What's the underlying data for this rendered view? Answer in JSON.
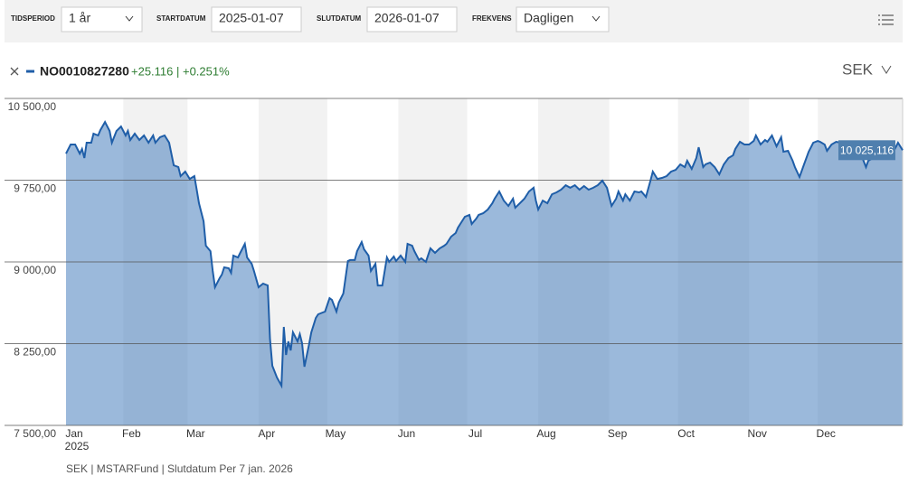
{
  "toolbar": {
    "period_label": "TIDSPERIOD",
    "period_value": "1 år",
    "start_label": "STARTDATUM",
    "start_value": "2025-01-07",
    "end_label": "SLUTDATUM",
    "end_value": "2026-01-07",
    "freq_label": "FREKVENS",
    "freq_value": "Dagligen"
  },
  "legend": {
    "change": "+25.116 | +0.251%",
    "currency": "SEK"
  },
  "footer": "SEK | MSTARFund | Slutdatum Per 7 jan. 2026",
  "chart_data": {
    "type": "area",
    "grid": true,
    "band_shading": true,
    "x_year_label": "2025",
    "xlim": [
      0,
      365
    ],
    "xticks": [
      {
        "value": 0,
        "label": "Jan"
      },
      {
        "value": 25,
        "label": "Feb"
      },
      {
        "value": 53,
        "label": "Mar"
      },
      {
        "value": 84,
        "label": "Apr"
      },
      {
        "value": 114,
        "label": "May"
      },
      {
        "value": 145,
        "label": "Jun"
      },
      {
        "value": 175,
        "label": "Jul"
      },
      {
        "value": 206,
        "label": "Aug"
      },
      {
        "value": 237,
        "label": "Sep"
      },
      {
        "value": 267,
        "label": "Oct"
      },
      {
        "value": 298,
        "label": "Nov"
      },
      {
        "value": 328,
        "label": "Dec"
      }
    ],
    "ylim": [
      7500,
      10500
    ],
    "yticks": [
      {
        "value": 7500,
        "label": "7 500,00"
      },
      {
        "value": 8250,
        "label": "8 250,00"
      },
      {
        "value": 9000,
        "label": "9 000,00"
      },
      {
        "value": 9750,
        "label": "9 750,00"
      },
      {
        "value": 10500,
        "label": "10 500,00"
      }
    ],
    "end_label": {
      "value": 10025.116,
      "label": "10 025,116"
    },
    "x": [
      0,
      2,
      4,
      6,
      7,
      8,
      9,
      11,
      12,
      14,
      15,
      17,
      19,
      20,
      22,
      24,
      26,
      27,
      28,
      30,
      32,
      34,
      36,
      38,
      39,
      41,
      43,
      45,
      47,
      49,
      50,
      52,
      54,
      56,
      57,
      58,
      60,
      61,
      63,
      64,
      65,
      67,
      68,
      69,
      71,
      72,
      73,
      75,
      76,
      78,
      79,
      81,
      82,
      84,
      86,
      88,
      89,
      90,
      92,
      94,
      95,
      96,
      97,
      98,
      99,
      101,
      102,
      103,
      104,
      106,
      107,
      109,
      110,
      112,
      113,
      115,
      116,
      118,
      119,
      121,
      123,
      124,
      126,
      127,
      129,
      130,
      132,
      133,
      135,
      136,
      138,
      140,
      141,
      143,
      144,
      146,
      148,
      149,
      151,
      152,
      154,
      155,
      157,
      159,
      161,
      163,
      165,
      166,
      168,
      170,
      171,
      172,
      174,
      176,
      177,
      179,
      180,
      182,
      184,
      186,
      187,
      189,
      191,
      193,
      195,
      196,
      198,
      200,
      202,
      204,
      205,
      206,
      208,
      210,
      212,
      214,
      216,
      218,
      220,
      222,
      224,
      226,
      228,
      230,
      232,
      234,
      236,
      238,
      240,
      241,
      243,
      244,
      246,
      248,
      250,
      251,
      253,
      255,
      256,
      258,
      260,
      262,
      264,
      266,
      268,
      270,
      271,
      273,
      275,
      276,
      278,
      279,
      281,
      283,
      285,
      287,
      289,
      291,
      292,
      294,
      296,
      298,
      300,
      301,
      303,
      305,
      306,
      308,
      310,
      312,
      313,
      315,
      317,
      318,
      320,
      322,
      324,
      326,
      328,
      329,
      331,
      332,
      334,
      336,
      338,
      339,
      341,
      343,
      344,
      346,
      347,
      349,
      350,
      352,
      354,
      356,
      357,
      359,
      361,
      363,
      365
    ],
    "series": [
      {
        "name": "NO0010827280",
        "color": "#1f5ea8",
        "values": [
          9994,
          10077,
          10077,
          9994,
          10036,
          9953,
          10094,
          10094,
          10177,
          10160,
          10210,
          10284,
          10202,
          10094,
          10202,
          10243,
          10160,
          10202,
          10119,
          10177,
          10119,
          10160,
          10094,
          10160,
          10094,
          10144,
          10160,
          10094,
          9887,
          9870,
          9787,
          9829,
          9762,
          9787,
          9663,
          9539,
          9373,
          9149,
          9099,
          8917,
          8768,
          8851,
          8884,
          8950,
          8942,
          8900,
          9058,
          9041,
          9083,
          9166,
          9041,
          8983,
          8917,
          8768,
          8801,
          8784,
          8296,
          8047,
          7939,
          7865,
          8403,
          8146,
          8271,
          8188,
          8354,
          8271,
          8337,
          8254,
          8039,
          8238,
          8354,
          8486,
          8519,
          8536,
          8544,
          8668,
          8652,
          8544,
          8627,
          8710,
          9008,
          9017,
          9017,
          9099,
          9182,
          9116,
          9058,
          8917,
          8983,
          8784,
          8784,
          9041,
          9000,
          9050,
          9008,
          9058,
          9000,
          9166,
          9149,
          9099,
          9017,
          9033,
          9000,
          9124,
          9083,
          9124,
          9149,
          9166,
          9232,
          9265,
          9315,
          9348,
          9414,
          9431,
          9348,
          9398,
          9431,
          9447,
          9481,
          9539,
          9580,
          9646,
          9563,
          9514,
          9580,
          9497,
          9539,
          9580,
          9646,
          9680,
          9563,
          9481,
          9563,
          9539,
          9621,
          9638,
          9663,
          9704,
          9680,
          9704,
          9663,
          9696,
          9663,
          9680,
          9704,
          9746,
          9680,
          9514,
          9580,
          9646,
          9563,
          9621,
          9563,
          9646,
          9638,
          9646,
          9597,
          9746,
          9829,
          9762,
          9771,
          9787,
          9829,
          9845,
          9895,
          9870,
          9928,
          9854,
          9953,
          10052,
          9870,
          9895,
          9912,
          9870,
          9804,
          9895,
          9953,
          9978,
          10036,
          10102,
          10077,
          10077,
          10110,
          10160,
          10077,
          10119,
          10102,
          10160,
          10061,
          10144,
          10011,
          10019,
          9928,
          9870,
          9779,
          9895,
          10011,
          10094,
          10110,
          10102,
          10077,
          10019,
          10077,
          10102,
          10094,
          9994,
          10036,
          9994,
          9953,
          10011,
          9978,
          9870,
          9928,
          9953,
          9978,
          10011,
          9978,
          9994,
          10011,
          10094,
          10025.116
        ]
      }
    ]
  }
}
